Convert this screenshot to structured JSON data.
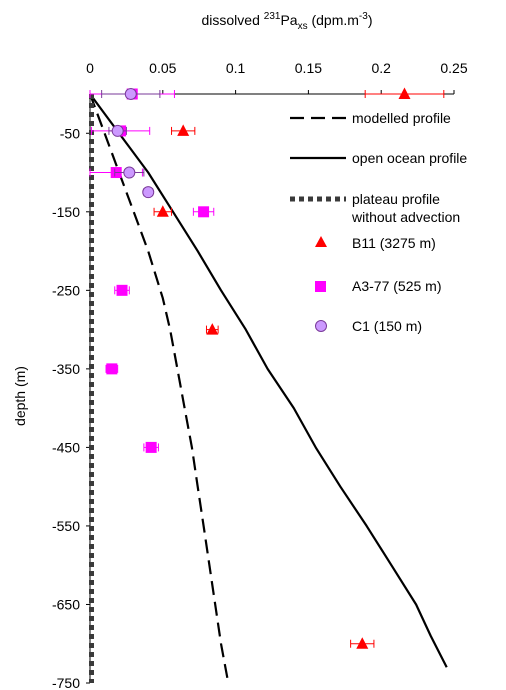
{
  "chart_data": {
    "type": "scatter",
    "title_parts": {
      "pre": "dissolved ",
      "sup1": "231",
      "main": "Pa",
      "sub": "xs",
      "mid": " (dpm.m",
      "sup2": "-3",
      "post": ")"
    },
    "ylabel": "depth (m)",
    "x_ticks": [
      "0",
      "0.05",
      "0.1",
      "0.15",
      "0.2",
      "0.25"
    ],
    "y_ticks": [
      "-50",
      "-150",
      "-250",
      "-350",
      "-450",
      "-550",
      "-650",
      "-750"
    ],
    "xlim": [
      0,
      0.25
    ],
    "ylim": [
      -750,
      0
    ],
    "x_axis_position": "top",
    "grid": false,
    "legend_position": "right",
    "lines": [
      {
        "name": "modelled profile",
        "style": "long-dash",
        "color": "#000000",
        "points": [
          [
            0,
            0
          ],
          [
            0.01,
            -50
          ],
          [
            0.02,
            -100
          ],
          [
            0.03,
            -150
          ],
          [
            0.04,
            -200
          ],
          [
            0.05,
            -260
          ],
          [
            0.055,
            -300
          ],
          [
            0.06,
            -350
          ],
          [
            0.065,
            -400
          ],
          [
            0.07,
            -450
          ],
          [
            0.074,
            -500
          ],
          [
            0.078,
            -550
          ],
          [
            0.082,
            -600
          ],
          [
            0.086,
            -650
          ],
          [
            0.09,
            -700
          ],
          [
            0.095,
            -750
          ]
        ]
      },
      {
        "name": "open ocean profile",
        "style": "solid",
        "color": "#000000",
        "points": [
          [
            0,
            0
          ],
          [
            0.02,
            -50
          ],
          [
            0.04,
            -100
          ],
          [
            0.057,
            -150
          ],
          [
            0.074,
            -200
          ],
          [
            0.09,
            -250
          ],
          [
            0.107,
            -300
          ],
          [
            0.122,
            -350
          ],
          [
            0.14,
            -400
          ],
          [
            0.155,
            -450
          ],
          [
            0.172,
            -500
          ],
          [
            0.19,
            -550
          ],
          [
            0.207,
            -600
          ],
          [
            0.224,
            -650
          ],
          [
            0.234,
            -690
          ],
          [
            0.245,
            -730
          ]
        ]
      },
      {
        "name_line1": "plateau profile",
        "name_line2": "without advection",
        "style": "short-dash-thick",
        "color": "#3a3a3a",
        "points": [
          [
            0.001,
            0
          ],
          [
            0.001,
            -750
          ]
        ]
      }
    ],
    "series": [
      {
        "name": "B11 (3275 m)",
        "marker": "triangle",
        "color": "#ff0000",
        "edge": "#ff0000",
        "points": [
          {
            "x": 0.216,
            "y": 0,
            "xerr": 0.027
          },
          {
            "x": 0.064,
            "y": -47,
            "xerr": 0.008
          },
          {
            "x": 0.05,
            "y": -150,
            "xerr": 0.006
          },
          {
            "x": 0.084,
            "y": -300,
            "xerr": 0.004
          },
          {
            "x": 0.187,
            "y": -700,
            "xerr": 0.008
          }
        ]
      },
      {
        "name": "A3-77 (525 m)",
        "marker": "square",
        "color": "#ff00ff",
        "edge": "#ff00ff",
        "points": [
          {
            "x": 0.029,
            "y": 0,
            "xerr": 0.029
          },
          {
            "x": 0.021,
            "y": -47,
            "xerr": 0.02
          },
          {
            "x": 0.018,
            "y": -100,
            "xerr": 0.018
          },
          {
            "x": 0.078,
            "y": -150,
            "xerr": 0.007
          },
          {
            "x": 0.022,
            "y": -250,
            "xerr": 0.005
          },
          {
            "x": 0.015,
            "y": -350,
            "xerr": 0.004
          },
          {
            "x": 0.042,
            "y": -450,
            "xerr": 0.005
          }
        ]
      },
      {
        "name": "C1 (150 m)",
        "marker": "circle",
        "color": "#cc99ff",
        "edge": "#7a3a9a",
        "points": [
          {
            "x": 0.028,
            "y": 0,
            "xerr": 0.02
          },
          {
            "x": 0.019,
            "y": -47,
            "xerr": 0.006
          },
          {
            "x": 0.027,
            "y": -100,
            "xerr": 0.01
          },
          {
            "x": 0.04,
            "y": -125,
            "xerr": 0.003
          }
        ]
      }
    ]
  }
}
